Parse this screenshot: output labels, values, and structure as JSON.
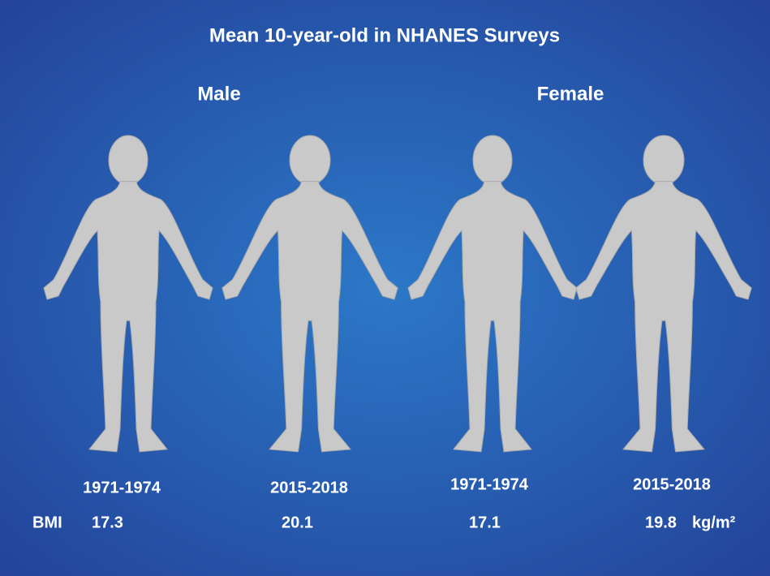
{
  "title": "Mean 10-year-old in NHANES Surveys",
  "groups": [
    {
      "label": "Male",
      "figures": [
        {
          "period": "1971-1974",
          "bmi": 17.3
        },
        {
          "period": "2015-2018",
          "bmi": 20.1
        }
      ]
    },
    {
      "label": "Female",
      "figures": [
        {
          "period": "1971-1974",
          "bmi": 17.1
        },
        {
          "period": "2015-2018",
          "bmi": 19.8
        }
      ]
    }
  ],
  "bmi_label": "BMI",
  "bmi_unit": "kg/m²"
}
